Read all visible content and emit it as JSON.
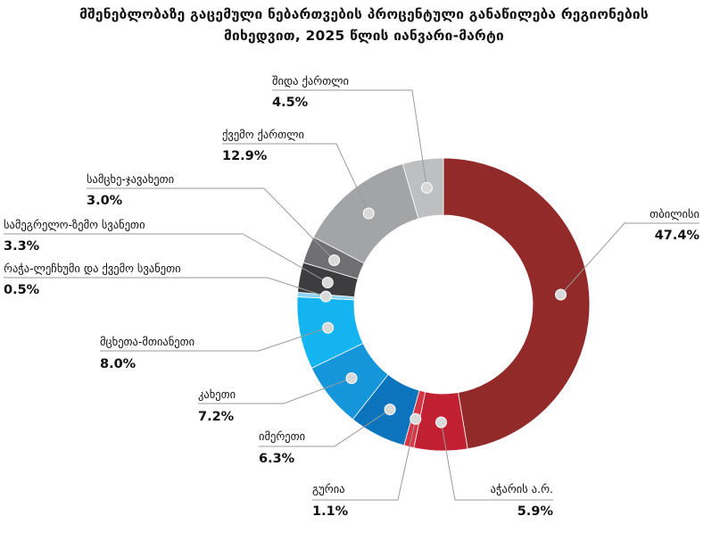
{
  "chart_data": {
    "type": "pie",
    "variant": "donut",
    "title_line1": "მშენებლობაზე გაცემული ნებართვების პროცენტული განაწილება რეგიონების",
    "title_line2": "მიხედვით, 2025 წლის იანვარი-მარტი",
    "slices": [
      {
        "name": "თბილისი",
        "value_label": "47.4%",
        "value": 47.4,
        "color": "#932a2a"
      },
      {
        "name": "აჭარის ა.რ.",
        "value_label": "5.9%",
        "value": 5.9,
        "color": "#c11f32"
      },
      {
        "name": "გურია",
        "value_label": "1.1%",
        "value": 1.1,
        "color": "#d63545"
      },
      {
        "name": "იმერეთი",
        "value_label": "6.3%",
        "value": 6.3,
        "color": "#0b74bc"
      },
      {
        "name": "კახეთი",
        "value_label": "7.2%",
        "value": 7.2,
        "color": "#1696da"
      },
      {
        "name": "მცხეთა-მთიანეთი",
        "value_label": "8.0%",
        "value": 8.0,
        "color": "#13b4ef"
      },
      {
        "name": "რაჭა-ლეჩხუმი და ქვემო სვანეთი",
        "value_label": "0.5%",
        "value": 0.5,
        "color": "#8dd5f3"
      },
      {
        "name": "სამეგრელო-ზემო სვანეთი",
        "value_label": "3.3%",
        "value": 3.3,
        "color": "#3d3d40"
      },
      {
        "name": "სამცხე-ჯავახეთი",
        "value_label": "3.0%",
        "value": 3.0,
        "color": "#707072"
      },
      {
        "name": "ქვემო ქართლი",
        "value_label": "12.9%",
        "value": 12.9,
        "color": "#a3a4a6"
      },
      {
        "name": "შიდა ქართლი",
        "value_label": "4.5%",
        "value": 4.5,
        "color": "#bdbfc1"
      }
    ],
    "label_style": "leader-lines"
  }
}
